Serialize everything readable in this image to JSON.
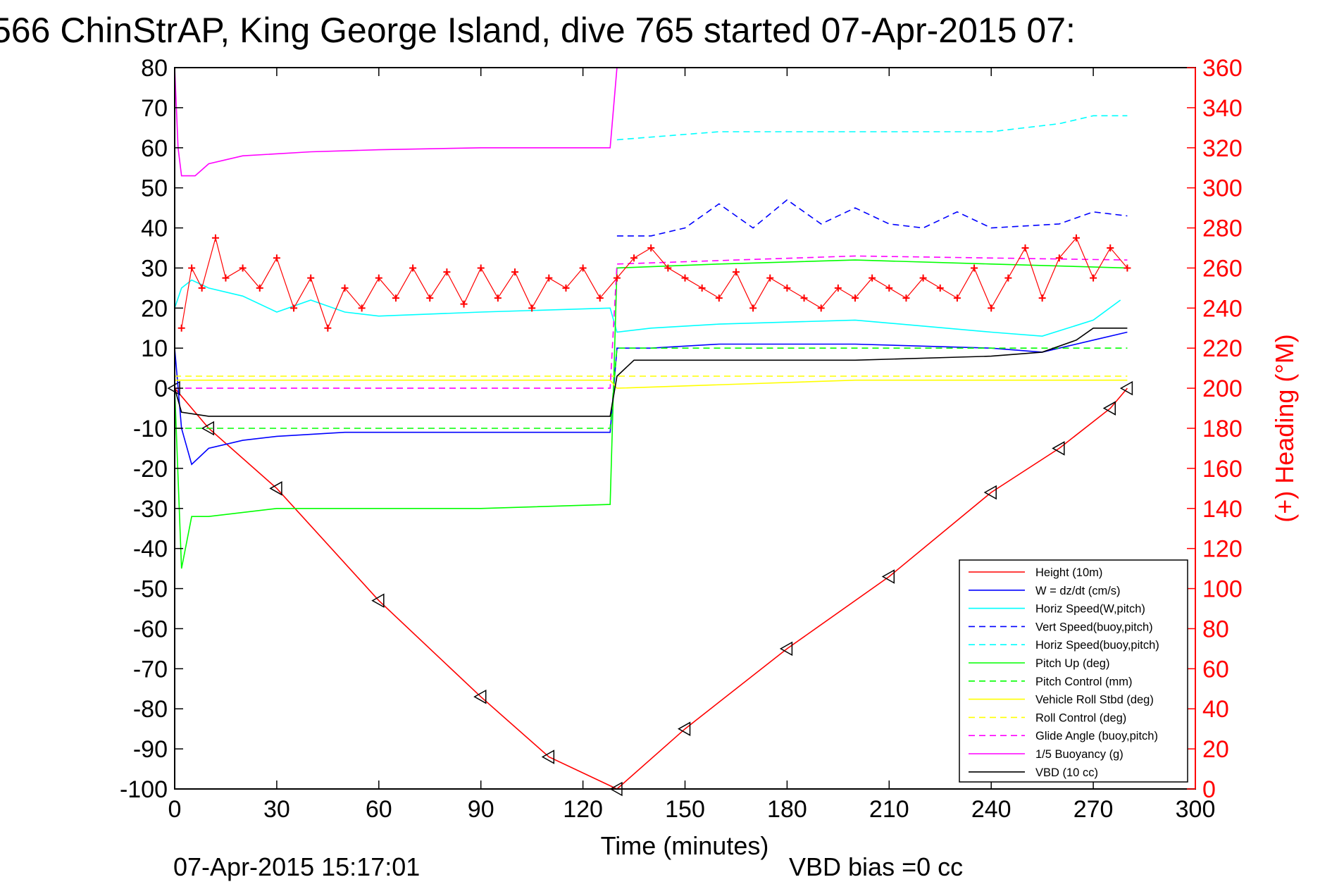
{
  "chart_data": {
    "type": "line",
    "title": "566 ChinStrAP, King George Island, dive 765 started 07-Apr-2015 07:",
    "xlabel": "Time (minutes)",
    "ylabel": "",
    "ylabel_right": "(+) Heading (°M)",
    "footer_left": "07-Apr-2015 15:17:01",
    "footer_right": "VBD bias =0 cc",
    "xlim": [
      0,
      300
    ],
    "ylim": [
      -100,
      80
    ],
    "ylim_right": [
      0,
      360
    ],
    "xticks": [
      "0",
      "30",
      "60",
      "90",
      "120",
      "150",
      "180",
      "210",
      "240",
      "270",
      "300"
    ],
    "yticks": [
      "80",
      "70",
      "60",
      "50",
      "40",
      "30",
      "20",
      "10",
      "0",
      "-10",
      "-20",
      "-30",
      "-40",
      "-50",
      "-60",
      "-70",
      "-80",
      "-90",
      "-100"
    ],
    "yticks_right": [
      "360",
      "340",
      "320",
      "300",
      "280",
      "260",
      "240",
      "220",
      "200",
      "180",
      "160",
      "140",
      "120",
      "100",
      "80",
      "60",
      "40",
      "20",
      "0"
    ],
    "grid": false,
    "legend_position": "bottom-right",
    "series": [
      {
        "name": "Height (10m)",
        "color": "#ff0000",
        "style": "solid",
        "marker": "triangle",
        "x": [
          0,
          10,
          30,
          60,
          90,
          110,
          130,
          150,
          180,
          210,
          240,
          260,
          275,
          280
        ],
        "y": [
          0,
          -10,
          -25,
          -53,
          -77,
          -92,
          -100,
          -85,
          -65,
          -47,
          -26,
          -15,
          -5,
          0
        ]
      },
      {
        "name": "W = dz/dt (cm/s)",
        "color": "#0000ff",
        "style": "solid",
        "x": [
          0,
          2,
          5,
          10,
          20,
          30,
          50,
          70,
          90,
          110,
          128,
          130,
          140,
          160,
          200,
          240,
          255,
          270,
          280
        ],
        "y": [
          10,
          -10,
          -19,
          -15,
          -13,
          -12,
          -11,
          -11,
          -11,
          -11,
          -11,
          10,
          10,
          11,
          11,
          10,
          9,
          12,
          14
        ]
      },
      {
        "name": "Horiz Speed(W,pitch)",
        "color": "#00ffff",
        "style": "solid",
        "x": [
          0,
          2,
          5,
          10,
          20,
          30,
          40,
          50,
          60,
          90,
          128,
          130,
          140,
          160,
          200,
          240,
          255,
          270,
          278
        ],
        "y": [
          20,
          25,
          27,
          25,
          23,
          19,
          22,
          19,
          18,
          19,
          20,
          14,
          15,
          16,
          17,
          14,
          13,
          17,
          22
        ]
      },
      {
        "name": "Vert Speed(buoy,pitch)",
        "color": "#0000ff",
        "style": "dashed",
        "x": [
          130,
          140,
          150,
          160,
          170,
          180,
          190,
          200,
          210,
          220,
          230,
          240,
          260,
          270,
          280
        ],
        "y": [
          38,
          38,
          40,
          46,
          40,
          47,
          41,
          45,
          41,
          40,
          44,
          40,
          41,
          44,
          43
        ]
      },
      {
        "name": "Horiz Speed(buoy,pitch)",
        "color": "#00ffff",
        "style": "dashed",
        "x": [
          130,
          160,
          200,
          240,
          260,
          270,
          280
        ],
        "y": [
          62,
          64,
          64,
          64,
          66,
          68,
          68
        ]
      },
      {
        "name": "Pitch Up (deg)",
        "color": "#00ff00",
        "style": "solid",
        "x": [
          0,
          2,
          5,
          10,
          30,
          60,
          90,
          128,
          130,
          160,
          200,
          240,
          280
        ],
        "y": [
          0,
          -45,
          -32,
          -32,
          -30,
          -30,
          -30,
          -29,
          30,
          31,
          32,
          31,
          30
        ]
      },
      {
        "name": "Pitch Control (mm)",
        "color": "#00ff00",
        "style": "dashed",
        "x": [
          0,
          10,
          128,
          130,
          200,
          280
        ],
        "y": [
          -10,
          -10,
          -10,
          10,
          10,
          10
        ]
      },
      {
        "name": "Vehicle Roll Stbd (deg)",
        "color": "#ffff00",
        "style": "solid",
        "x": [
          0,
          10,
          60,
          128,
          130,
          200,
          280
        ],
        "y": [
          2,
          2,
          2,
          2,
          0,
          2,
          2
        ]
      },
      {
        "name": "Roll Control (deg)",
        "color": "#ffff00",
        "style": "dashed",
        "x": [
          0,
          10,
          128,
          130,
          280
        ],
        "y": [
          3,
          3,
          3,
          3,
          3
        ]
      },
      {
        "name": "Glide Angle (buoy,pitch)",
        "color": "#ff00ff",
        "style": "dashed",
        "x": [
          0,
          128,
          130,
          200,
          280
        ],
        "y": [
          0,
          0,
          31,
          33,
          32
        ]
      },
      {
        "name": "1/5 Buoyancy (g)",
        "color": "#ff00ff",
        "style": "solid",
        "x": [
          0,
          1,
          2,
          6,
          10,
          20,
          40,
          60,
          90,
          128,
          130
        ],
        "y": [
          80,
          60,
          53,
          53,
          56,
          58,
          59,
          59.5,
          60,
          60,
          80
        ]
      },
      {
        "name": "VBD (10 cc)",
        "color": "#000000",
        "style": "solid",
        "x": [
          0,
          2,
          10,
          128,
          130,
          135,
          200,
          240,
          255,
          265,
          270,
          280
        ],
        "y": [
          0,
          -6,
          -7,
          -7,
          3,
          7,
          7,
          8,
          9,
          12,
          15,
          15
        ]
      }
    ],
    "heading_series": {
      "name": "(+) Heading",
      "color": "#ff0000",
      "marker": "+",
      "x": [
        2,
        5,
        8,
        12,
        15,
        20,
        25,
        30,
        35,
        40,
        45,
        50,
        55,
        60,
        65,
        70,
        75,
        80,
        85,
        90,
        95,
        100,
        105,
        110,
        115,
        120,
        125,
        130,
        135,
        140,
        145,
        150,
        155,
        160,
        165,
        170,
        175,
        180,
        185,
        190,
        195,
        200,
        205,
        210,
        215,
        220,
        225,
        230,
        235,
        240,
        245,
        250,
        255,
        260,
        265,
        270,
        275,
        280
      ],
      "y": [
        230,
        260,
        250,
        275,
        255,
        260,
        250,
        265,
        240,
        255,
        230,
        250,
        240,
        255,
        245,
        260,
        245,
        258,
        242,
        260,
        245,
        258,
        240,
        255,
        250,
        260,
        245,
        255,
        265,
        270,
        260,
        255,
        250,
        245,
        258,
        240,
        255,
        250,
        245,
        240,
        250,
        245,
        255,
        250,
        245,
        255,
        250,
        245,
        260,
        240,
        255,
        270,
        245,
        265,
        275,
        255,
        270,
        260
      ]
    }
  }
}
